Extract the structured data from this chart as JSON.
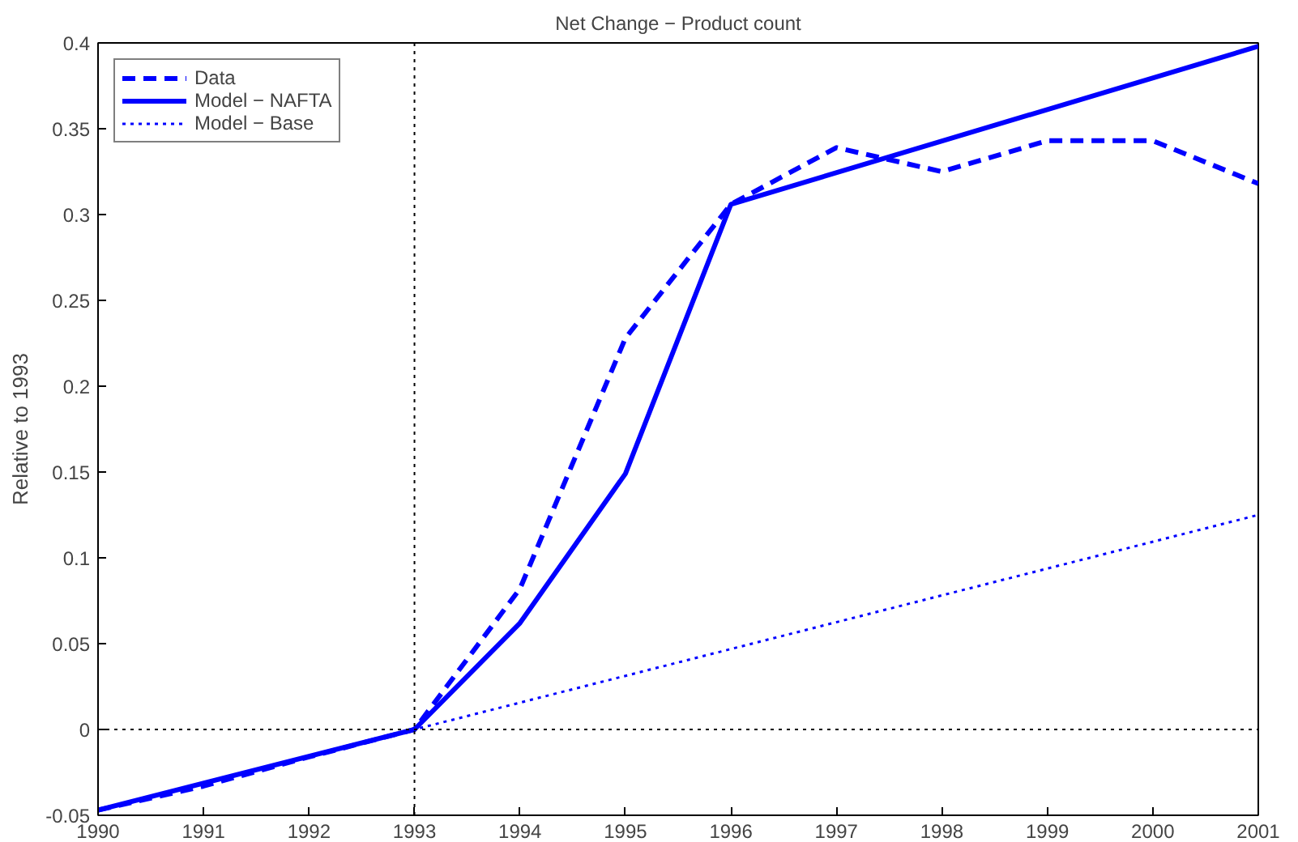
{
  "chart_data": {
    "type": "line",
    "title": "Net Change − Product count",
    "ylabel": "Relative to 1993",
    "x": [
      1990,
      1991,
      1992,
      1993,
      1994,
      1995,
      1996,
      1997,
      1998,
      1999,
      2000,
      2001
    ],
    "series": [
      {
        "name": "Data",
        "color": "#0000ff",
        "line_style": "dashed",
        "values": [
          -0.047,
          -0.033,
          -0.016,
          0,
          0.082,
          0.228,
          0.306,
          0.339,
          0.325,
          0.343,
          0.343,
          0.318
        ]
      },
      {
        "name": "Model − NAFTA",
        "color": "#0000ff",
        "line_style": "solid",
        "x": [
          1990,
          1993,
          1994,
          1995,
          1996,
          2001
        ],
        "values": [
          -0.047,
          0,
          0.062,
          0.149,
          0.306,
          0.398
        ]
      },
      {
        "name": "Model − Base",
        "color": "#0000ff",
        "line_style": "dotted",
        "x": [
          1990,
          1993,
          2001
        ],
        "values": [
          -0.047,
          0,
          0.125
        ]
      }
    ],
    "xlim": [
      1990,
      2001
    ],
    "xticks": [
      1990,
      1991,
      1992,
      1993,
      1994,
      1995,
      1996,
      1997,
      1998,
      1999,
      2000,
      2001
    ],
    "ylim": [
      -0.05,
      0.4
    ],
    "yticks": [
      -0.05,
      0,
      0.05,
      0.1,
      0.15,
      0.2,
      0.25,
      0.3,
      0.35,
      0.4
    ],
    "ref_lines": [
      {
        "axis": "y",
        "value": 0,
        "color": "#000000",
        "line_style": "dotted"
      },
      {
        "axis": "x",
        "value": 1993,
        "color": "#000000",
        "line_style": "dotted"
      }
    ],
    "grid": false,
    "legend": "top left",
    "marker": "none"
  }
}
